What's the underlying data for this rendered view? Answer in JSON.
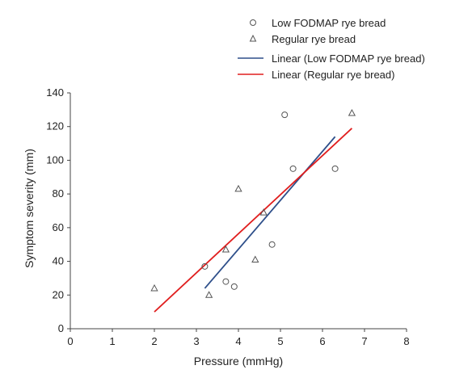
{
  "chart_data": {
    "type": "scatter",
    "title": "",
    "xlabel": "Pressure (mmHg)",
    "ylabel": "Symptom severity (mm)",
    "xlim": [
      0,
      8
    ],
    "ylim": [
      0,
      140
    ],
    "xticks": [
      "0",
      "1",
      "2",
      "3",
      "4",
      "5",
      "6",
      "7",
      "8"
    ],
    "yticks": [
      "0",
      "20",
      "40",
      "60",
      "80",
      "100",
      "120",
      "140"
    ],
    "grid": false,
    "legend_position": "top-right",
    "series": [
      {
        "name": "Low FODMAP rye bread",
        "kind": "scatter",
        "marker": "circle",
        "color": "#555555",
        "points": [
          [
            3.2,
            37
          ],
          [
            3.7,
            28
          ],
          [
            3.9,
            25
          ],
          [
            4.8,
            50
          ],
          [
            5.1,
            127
          ],
          [
            5.3,
            95
          ],
          [
            6.3,
            95
          ]
        ]
      },
      {
        "name": "Regular rye bread",
        "kind": "scatter",
        "marker": "triangle",
        "color": "#555555",
        "points": [
          [
            2.0,
            24
          ],
          [
            3.3,
            20
          ],
          [
            3.7,
            47
          ],
          [
            4.0,
            83
          ],
          [
            4.4,
            41
          ],
          [
            4.6,
            69
          ],
          [
            6.7,
            128
          ]
        ]
      },
      {
        "name": "Linear (Low FODMAP rye bread)",
        "kind": "line",
        "color": "#2e4f8a",
        "points": [
          [
            3.2,
            24
          ],
          [
            6.3,
            114
          ]
        ]
      },
      {
        "name": "Linear (Regular rye bread)",
        "kind": "line",
        "color": "#e01e1e",
        "points": [
          [
            2.0,
            10
          ],
          [
            6.7,
            119
          ]
        ]
      }
    ]
  }
}
